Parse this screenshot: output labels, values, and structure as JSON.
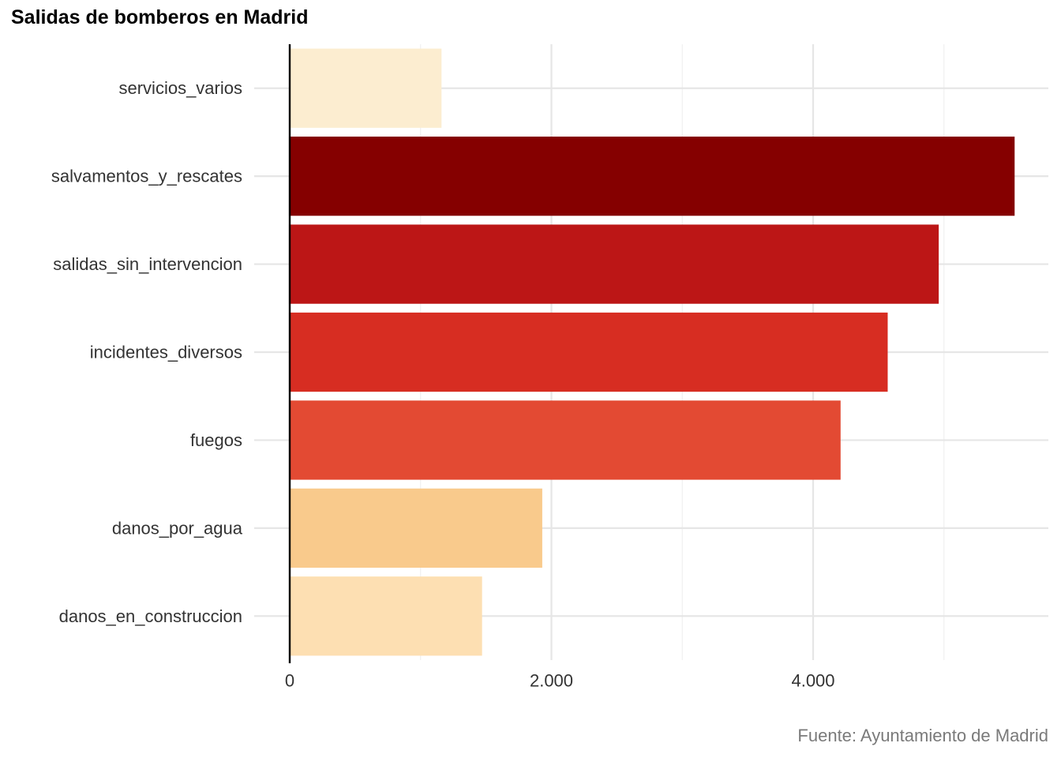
{
  "chart_data": {
    "type": "bar",
    "orientation": "horizontal",
    "title": "Salidas de bomberos en Madrid",
    "caption": "Fuente: Ayuntamiento de Madrid",
    "xlabel": "",
    "ylabel": "",
    "categories": [
      "servicios_varios",
      "salvamentos_y_rescates",
      "salidas_sin_intervencion",
      "incidentes_diversos",
      "fuegos",
      "danos_por_agua",
      "danos_en_construccion"
    ],
    "values": [
      1160,
      5540,
      4960,
      4570,
      4210,
      1930,
      1470
    ],
    "colors": [
      "#FCEDD0",
      "#850000",
      "#BC1616",
      "#D72D22",
      "#E34A33",
      "#F9CA8C",
      "#FDDFB2"
    ],
    "xlim": [
      0,
      5800
    ],
    "xticks": [
      0,
      2000,
      4000
    ],
    "xtick_labels": [
      "0",
      "2.000",
      "4.000"
    ],
    "grid": true,
    "legend": "none"
  }
}
